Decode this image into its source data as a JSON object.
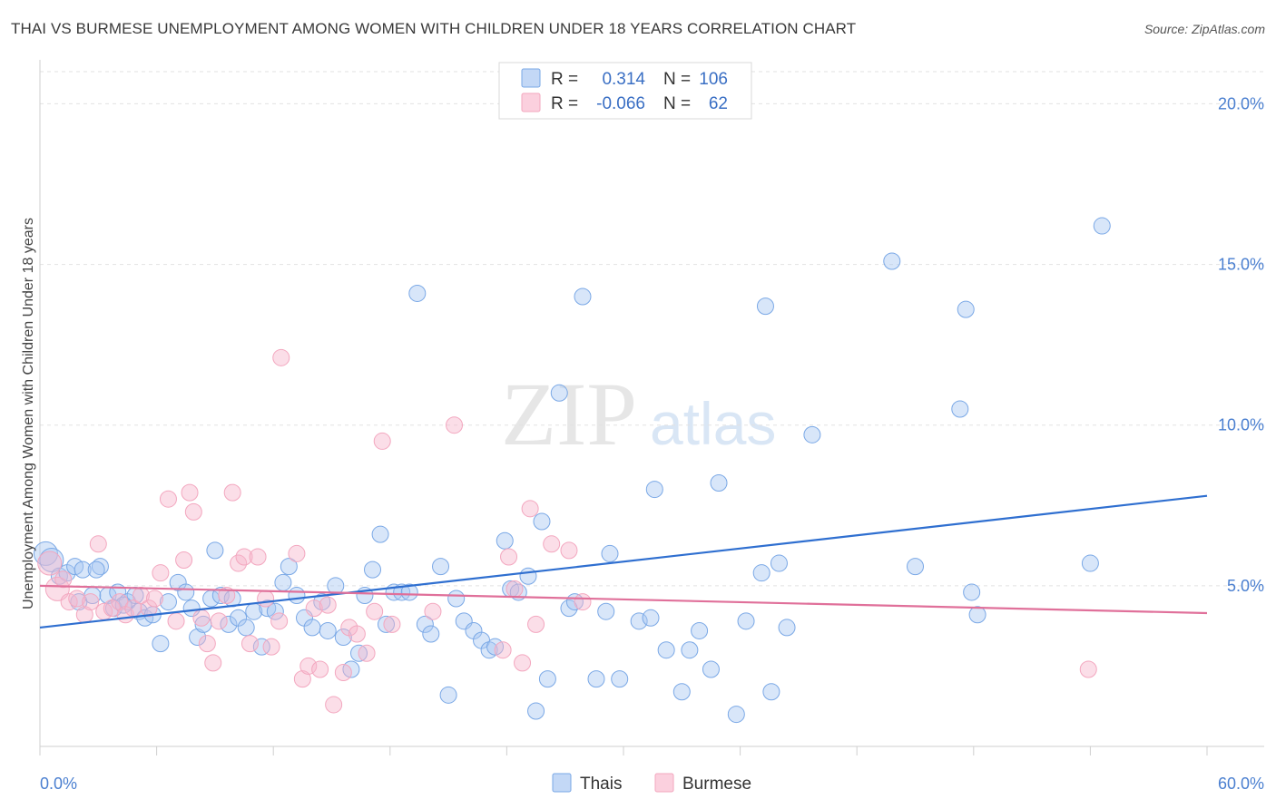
{
  "header": {
    "title": "THAI VS BURMESE UNEMPLOYMENT AMONG WOMEN WITH CHILDREN UNDER 18 YEARS CORRELATION CHART",
    "source": "Source: ZipAtlas.com"
  },
  "watermark": {
    "zip": "ZIP",
    "atlas": "atlas"
  },
  "legend": {
    "r_label": "R =",
    "n_label": "N =",
    "rows": [
      {
        "r": "0.314",
        "n": "106",
        "color": "#a9c8f2"
      },
      {
        "r": "-0.066",
        "n": "62",
        "color": "#f6b6cb"
      }
    ]
  },
  "bottom_legend": [
    {
      "label": "Thais",
      "color": "#a9c8f2"
    },
    {
      "label": "Burmese",
      "color": "#f6b6cb"
    }
  ],
  "chart_data": {
    "type": "scatter",
    "title": "THAI VS BURMESE UNEMPLOYMENT AMONG WOMEN WITH CHILDREN UNDER 18 YEARS CORRELATION CHART",
    "xlabel": "",
    "ylabel": "Unemployment Among Women with Children Under 18 years",
    "xlim": [
      0,
      60
    ],
    "ylim": [
      0,
      21
    ],
    "x_tick_labels": [
      "0.0%",
      "60.0%"
    ],
    "y_ticks": [
      5,
      10,
      15,
      20
    ],
    "y_tick_labels": [
      "5.0%",
      "10.0%",
      "15.0%",
      "20.0%"
    ],
    "grid": "horizontal dashed",
    "legend_position": "top-center",
    "series": [
      {
        "name": "Thais",
        "color": "#7aa8e6",
        "trend": {
          "x": [
            0,
            60
          ],
          "y": [
            3.7,
            7.8
          ]
        },
        "points": [
          [
            0.3,
            6.0
          ],
          [
            0.6,
            5.8
          ],
          [
            1.0,
            5.3
          ],
          [
            1.4,
            5.4
          ],
          [
            1.8,
            5.6
          ],
          [
            2.2,
            5.5
          ],
          [
            2.0,
            4.5
          ],
          [
            2.7,
            4.7
          ],
          [
            3.1,
            5.6
          ],
          [
            3.5,
            4.7
          ],
          [
            3.8,
            4.3
          ],
          [
            4.0,
            4.8
          ],
          [
            4.5,
            4.5
          ],
          [
            4.9,
            4.7
          ],
          [
            5.1,
            4.2
          ],
          [
            5.4,
            4.0
          ],
          [
            5.8,
            4.1
          ],
          [
            6.2,
            3.2
          ],
          [
            6.6,
            4.5
          ],
          [
            7.1,
            5.1
          ],
          [
            7.5,
            4.8
          ],
          [
            7.8,
            4.3
          ],
          [
            8.1,
            3.4
          ],
          [
            8.4,
            3.8
          ],
          [
            8.8,
            4.6
          ],
          [
            9.0,
            6.1
          ],
          [
            9.3,
            4.7
          ],
          [
            9.7,
            3.8
          ],
          [
            10.2,
            4.0
          ],
          [
            10.6,
            3.7
          ],
          [
            11.0,
            4.2
          ],
          [
            11.4,
            3.1
          ],
          [
            11.7,
            4.3
          ],
          [
            12.1,
            4.2
          ],
          [
            12.5,
            5.1
          ],
          [
            12.8,
            5.6
          ],
          [
            13.2,
            4.7
          ],
          [
            13.6,
            4.0
          ],
          [
            14.0,
            3.7
          ],
          [
            14.5,
            4.5
          ],
          [
            14.8,
            3.6
          ],
          [
            15.2,
            5.0
          ],
          [
            15.6,
            3.4
          ],
          [
            16.0,
            2.4
          ],
          [
            16.4,
            2.9
          ],
          [
            16.7,
            4.7
          ],
          [
            17.1,
            5.5
          ],
          [
            17.5,
            6.6
          ],
          [
            17.8,
            3.8
          ],
          [
            18.2,
            4.8
          ],
          [
            18.6,
            4.8
          ],
          [
            19.0,
            4.8
          ],
          [
            19.4,
            14.1
          ],
          [
            19.8,
            3.8
          ],
          [
            20.1,
            3.5
          ],
          [
            20.6,
            5.6
          ],
          [
            21.0,
            1.6
          ],
          [
            21.4,
            4.6
          ],
          [
            21.8,
            3.9
          ],
          [
            22.3,
            3.6
          ],
          [
            22.7,
            3.3
          ],
          [
            23.1,
            3.0
          ],
          [
            23.4,
            3.1
          ],
          [
            23.9,
            6.4
          ],
          [
            24.2,
            4.9
          ],
          [
            24.6,
            4.8
          ],
          [
            25.1,
            5.3
          ],
          [
            25.5,
            1.1
          ],
          [
            25.8,
            7.0
          ],
          [
            26.1,
            2.1
          ],
          [
            26.7,
            11.0
          ],
          [
            27.2,
            4.3
          ],
          [
            27.5,
            4.5
          ],
          [
            27.9,
            14.0
          ],
          [
            28.6,
            2.1
          ],
          [
            29.1,
            4.2
          ],
          [
            29.3,
            6.0
          ],
          [
            29.8,
            2.1
          ],
          [
            30.8,
            3.9
          ],
          [
            31.4,
            4.0
          ],
          [
            31.6,
            8.0
          ],
          [
            32.2,
            3.0
          ],
          [
            33.0,
            1.7
          ],
          [
            33.4,
            3.0
          ],
          [
            33.9,
            3.6
          ],
          [
            34.5,
            2.4
          ],
          [
            34.9,
            8.2
          ],
          [
            35.8,
            1.0
          ],
          [
            36.3,
            3.9
          ],
          [
            37.1,
            5.4
          ],
          [
            37.3,
            13.7
          ],
          [
            37.6,
            1.7
          ],
          [
            38.0,
            5.7
          ],
          [
            38.4,
            3.7
          ],
          [
            39.7,
            9.7
          ],
          [
            43.8,
            15.1
          ],
          [
            45.0,
            5.6
          ],
          [
            47.3,
            10.5
          ],
          [
            47.6,
            13.6
          ],
          [
            47.9,
            4.8
          ],
          [
            48.2,
            4.1
          ],
          [
            54.0,
            5.7
          ],
          [
            54.6,
            16.2
          ],
          [
            2.9,
            5.5
          ],
          [
            4.3,
            4.4
          ],
          [
            9.9,
            4.6
          ]
        ]
      },
      {
        "name": "Burmese",
        "color": "#f3a7bf",
        "trend": {
          "x": [
            0,
            60
          ],
          "y": [
            5.0,
            4.15
          ]
        },
        "points": [
          [
            0.5,
            5.7
          ],
          [
            0.9,
            4.9
          ],
          [
            1.2,
            5.2
          ],
          [
            1.5,
            4.5
          ],
          [
            1.9,
            4.6
          ],
          [
            2.3,
            4.1
          ],
          [
            2.6,
            4.5
          ],
          [
            3.0,
            6.3
          ],
          [
            3.3,
            4.2
          ],
          [
            3.7,
            4.3
          ],
          [
            4.1,
            4.5
          ],
          [
            4.4,
            4.1
          ],
          [
            4.8,
            4.3
          ],
          [
            5.2,
            4.7
          ],
          [
            5.6,
            4.3
          ],
          [
            5.9,
            4.6
          ],
          [
            6.2,
            5.4
          ],
          [
            6.6,
            7.7
          ],
          [
            7.0,
            3.9
          ],
          [
            7.4,
            5.8
          ],
          [
            7.7,
            7.9
          ],
          [
            7.9,
            7.3
          ],
          [
            8.3,
            4.0
          ],
          [
            8.6,
            3.2
          ],
          [
            8.9,
            2.6
          ],
          [
            9.2,
            3.9
          ],
          [
            9.6,
            4.7
          ],
          [
            9.9,
            7.9
          ],
          [
            10.2,
            5.7
          ],
          [
            10.5,
            5.9
          ],
          [
            10.8,
            3.2
          ],
          [
            11.2,
            5.9
          ],
          [
            11.6,
            4.6
          ],
          [
            11.9,
            3.1
          ],
          [
            12.3,
            3.9
          ],
          [
            12.4,
            12.1
          ],
          [
            13.2,
            6.0
          ],
          [
            13.5,
            2.1
          ],
          [
            13.8,
            2.5
          ],
          [
            14.1,
            4.3
          ],
          [
            14.4,
            2.4
          ],
          [
            14.8,
            4.4
          ],
          [
            15.1,
            1.3
          ],
          [
            15.6,
            2.3
          ],
          [
            15.9,
            3.7
          ],
          [
            16.3,
            3.5
          ],
          [
            16.8,
            2.9
          ],
          [
            17.2,
            4.2
          ],
          [
            17.6,
            9.5
          ],
          [
            18.1,
            3.8
          ],
          [
            20.2,
            4.2
          ],
          [
            21.3,
            10.0
          ],
          [
            23.8,
            3.0
          ],
          [
            24.1,
            5.9
          ],
          [
            24.4,
            4.9
          ],
          [
            24.8,
            2.6
          ],
          [
            25.2,
            7.4
          ],
          [
            25.5,
            3.8
          ],
          [
            26.3,
            6.3
          ],
          [
            27.2,
            6.1
          ],
          [
            27.9,
            4.5
          ],
          [
            53.9,
            2.4
          ]
        ]
      }
    ]
  }
}
